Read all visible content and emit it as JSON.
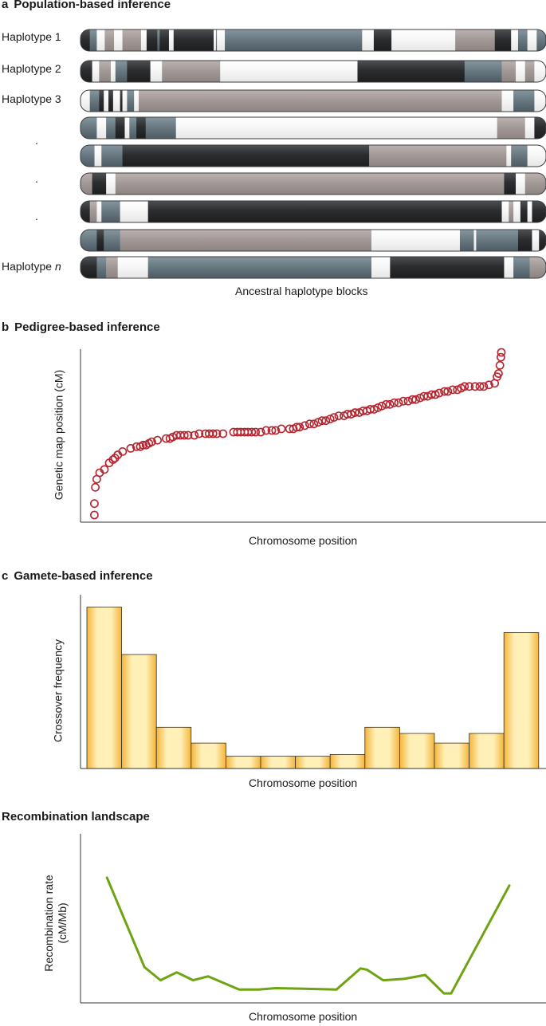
{
  "panel_a": {
    "letter": "a",
    "title": "Population-based inference",
    "row_labels": [
      "Haplotype 1",
      "Haplotype 2",
      "Haplotype 3",
      "",
      ".",
      ".",
      ".",
      "",
      "Haplotype"
    ],
    "last_label_italic": "n",
    "caption": "Ancestral haplotype blocks",
    "colors": {
      "black": "#2b2d2f",
      "grey": "#6a7a82",
      "taupe": "#a39a98",
      "white": "#f7f7f7"
    },
    "haplotypes": [
      {
        "segments": [
          [
            "black",
            0,
            0.02
          ],
          [
            "grey",
            0.02,
            0.035
          ],
          [
            "white",
            0.035,
            0.052
          ],
          [
            "taupe",
            0.052,
            0.072
          ],
          [
            "white",
            0.072,
            0.09
          ],
          [
            "taupe",
            0.09,
            0.13
          ],
          [
            "white",
            0.13,
            0.142
          ],
          [
            "black",
            0.142,
            0.165
          ],
          [
            "grey",
            0.165,
            0.17
          ],
          [
            "black",
            0.17,
            0.19
          ],
          [
            "white",
            0.19,
            0.2
          ],
          [
            "black",
            0.2,
            0.286
          ],
          [
            "white",
            0.286,
            0.291
          ],
          [
            "grey",
            0.291,
            0.293
          ],
          [
            "white",
            0.293,
            0.31
          ],
          [
            "grey",
            0.31,
            0.605
          ],
          [
            "white",
            0.605,
            0.63
          ],
          [
            "black",
            0.63,
            0.668
          ],
          [
            "white",
            0.668,
            0.805
          ],
          [
            "taupe",
            0.805,
            0.89
          ],
          [
            "black",
            0.89,
            0.925
          ],
          [
            "white",
            0.925,
            0.94
          ],
          [
            "grey",
            0.94,
            0.96
          ],
          [
            "white",
            0.96,
            0.98
          ],
          [
            "grey",
            0.98,
            1
          ]
        ]
      },
      {
        "segments": [
          [
            "black",
            0,
            0.025
          ],
          [
            "white",
            0.025,
            0.04
          ],
          [
            "taupe",
            0.04,
            0.065
          ],
          [
            "white",
            0.065,
            0.075
          ],
          [
            "grey",
            0.075,
            0.1
          ],
          [
            "black",
            0.1,
            0.15
          ],
          [
            "white",
            0.15,
            0.175
          ],
          [
            "taupe",
            0.175,
            0.3
          ],
          [
            "white",
            0.3,
            0.595
          ],
          [
            "black",
            0.595,
            0.825
          ],
          [
            "grey",
            0.825,
            0.905
          ],
          [
            "taupe",
            0.905,
            0.935
          ],
          [
            "white",
            0.935,
            0.955
          ],
          [
            "taupe",
            0.955,
            0.975
          ],
          [
            "white",
            0.975,
            1
          ]
        ]
      },
      {
        "segments": [
          [
            "white",
            0,
            0.02
          ],
          [
            "grey",
            0.02,
            0.04
          ],
          [
            "black",
            0.04,
            0.05
          ],
          [
            "white",
            0.05,
            0.06
          ],
          [
            "black",
            0.06,
            0.07
          ],
          [
            "white",
            0.07,
            0.085
          ],
          [
            "black",
            0.085,
            0.09
          ],
          [
            "white",
            0.09,
            0.1
          ],
          [
            "grey",
            0.1,
            0.115
          ],
          [
            "white",
            0.115,
            0.125
          ],
          [
            "taupe",
            0.125,
            0.905
          ],
          [
            "white",
            0.905,
            0.93
          ],
          [
            "grey",
            0.93,
            0.975
          ],
          [
            "white",
            0.975,
            1
          ]
        ]
      },
      {
        "segments": [
          [
            "grey",
            0,
            0.035
          ],
          [
            "white",
            0.035,
            0.055
          ],
          [
            "grey",
            0.055,
            0.075
          ],
          [
            "black",
            0.075,
            0.095
          ],
          [
            "white",
            0.095,
            0.105
          ],
          [
            "grey",
            0.105,
            0.12
          ],
          [
            "black",
            0.12,
            0.14
          ],
          [
            "grey",
            0.14,
            0.205
          ],
          [
            "white",
            0.205,
            0.895
          ],
          [
            "taupe",
            0.895,
            0.955
          ],
          [
            "white",
            0.955,
            0.975
          ],
          [
            "black",
            0.975,
            1
          ]
        ]
      },
      {
        "segments": [
          [
            "grey",
            0,
            0.03
          ],
          [
            "white",
            0.03,
            0.045
          ],
          [
            "grey",
            0.045,
            0.09
          ],
          [
            "black",
            0.09,
            0.62
          ],
          [
            "taupe",
            0.62,
            0.915
          ],
          [
            "white",
            0.915,
            0.925
          ],
          [
            "grey",
            0.925,
            0.96
          ],
          [
            "white",
            0.96,
            1
          ]
        ]
      },
      {
        "segments": [
          [
            "taupe",
            0,
            0.025
          ],
          [
            "black",
            0.025,
            0.055
          ],
          [
            "white",
            0.055,
            0.075
          ],
          [
            "taupe",
            0.075,
            0.91
          ],
          [
            "black",
            0.91,
            0.935
          ],
          [
            "white",
            0.935,
            0.955
          ],
          [
            "taupe",
            0.955,
            1
          ]
        ]
      },
      {
        "segments": [
          [
            "black",
            0,
            0.02
          ],
          [
            "taupe",
            0.02,
            0.035
          ],
          [
            "white",
            0.035,
            0.045
          ],
          [
            "grey",
            0.045,
            0.085
          ],
          [
            "white",
            0.085,
            0.145
          ],
          [
            "black",
            0.145,
            0.905
          ],
          [
            "white",
            0.905,
            0.92
          ],
          [
            "taupe",
            0.92,
            0.93
          ],
          [
            "white",
            0.93,
            0.945
          ],
          [
            "black",
            0.945,
            0.96
          ],
          [
            "white",
            0.96,
            0.97
          ],
          [
            "black",
            0.97,
            1
          ]
        ]
      },
      {
        "segments": [
          [
            "grey",
            0,
            0.035
          ],
          [
            "black",
            0.035,
            0.05
          ],
          [
            "grey",
            0.05,
            0.085
          ],
          [
            "taupe",
            0.085,
            0.625
          ],
          [
            "white",
            0.625,
            0.815
          ],
          [
            "grey",
            0.815,
            0.845
          ],
          [
            "white",
            0.845,
            0.85
          ],
          [
            "grey",
            0.85,
            0.94
          ],
          [
            "black",
            0.94,
            0.97
          ],
          [
            "white",
            0.97,
            0.985
          ],
          [
            "black",
            0.985,
            1
          ]
        ]
      },
      {
        "segments": [
          [
            "black",
            0,
            0.035
          ],
          [
            "grey",
            0.035,
            0.055
          ],
          [
            "taupe",
            0.055,
            0.08
          ],
          [
            "white",
            0.08,
            0.145
          ],
          [
            "grey",
            0.145,
            0.625
          ],
          [
            "white",
            0.625,
            0.665
          ],
          [
            "black",
            0.665,
            0.91
          ],
          [
            "white",
            0.91,
            0.93
          ],
          [
            "grey",
            0.93,
            0.965
          ],
          [
            "taupe",
            0.965,
            1
          ]
        ]
      }
    ]
  },
  "panel_b": {
    "letter": "b",
    "title": "Pedigree-based inference",
    "chart_data": {
      "type": "scatter",
      "xlabel": "Chromosome position",
      "ylabel": "Genetic map position (cM)",
      "marker_color": "#b5252f",
      "points": [
        [
          0.4,
          0.0
        ],
        [
          0.4,
          0.07
        ],
        [
          0.6,
          0.17
        ],
        [
          0.9,
          0.22
        ],
        [
          1.5,
          0.26
        ],
        [
          2.5,
          0.28
        ],
        [
          3.5,
          0.32
        ],
        [
          4.3,
          0.34
        ],
        [
          4.7,
          0.35
        ],
        [
          5.3,
          0.37
        ],
        [
          6.3,
          0.39
        ],
        [
          8.0,
          0.41
        ],
        [
          9.2,
          0.42
        ],
        [
          10.0,
          0.42
        ],
        [
          10.6,
          0.43
        ],
        [
          11.2,
          0.43
        ],
        [
          11.8,
          0.44
        ],
        [
          12.4,
          0.45
        ],
        [
          13.6,
          0.46
        ],
        [
          15.4,
          0.47
        ],
        [
          16.2,
          0.47
        ],
        [
          16.8,
          0.48
        ],
        [
          17.6,
          0.49
        ],
        [
          18.4,
          0.49
        ],
        [
          19.2,
          0.49
        ],
        [
          20.0,
          0.49
        ],
        [
          21.3,
          0.49
        ],
        [
          22.3,
          0.5
        ],
        [
          23.6,
          0.5
        ],
        [
          24.4,
          0.5
        ],
        [
          25.2,
          0.5
        ],
        [
          26.0,
          0.5
        ],
        [
          27.3,
          0.5
        ],
        [
          29.5,
          0.51
        ],
        [
          30.3,
          0.51
        ],
        [
          31.0,
          0.51
        ],
        [
          31.8,
          0.51
        ],
        [
          32.5,
          0.51
        ],
        [
          33.3,
          0.51
        ],
        [
          34.1,
          0.51
        ],
        [
          35.2,
          0.51
        ],
        [
          36.3,
          0.52
        ],
        [
          37.5,
          0.52
        ],
        [
          38.3,
          0.52
        ],
        [
          39.5,
          0.53
        ],
        [
          41.2,
          0.53
        ],
        [
          42.0,
          0.53
        ],
        [
          42.7,
          0.54
        ],
        [
          43.3,
          0.54
        ],
        [
          44.4,
          0.55
        ],
        [
          45.4,
          0.56
        ],
        [
          46.3,
          0.56
        ],
        [
          47.2,
          0.57
        ],
        [
          48.0,
          0.58
        ],
        [
          48.8,
          0.58
        ],
        [
          49.7,
          0.59
        ],
        [
          50.5,
          0.6
        ],
        [
          51.5,
          0.61
        ],
        [
          52.6,
          0.61
        ],
        [
          53.3,
          0.62
        ],
        [
          54.1,
          0.62
        ],
        [
          54.9,
          0.63
        ],
        [
          55.8,
          0.63
        ],
        [
          56.6,
          0.64
        ],
        [
          57.4,
          0.64
        ],
        [
          58.1,
          0.65
        ],
        [
          58.9,
          0.65
        ],
        [
          59.7,
          0.66
        ],
        [
          60.5,
          0.67
        ],
        [
          61.4,
          0.68
        ],
        [
          62.2,
          0.68
        ],
        [
          63.1,
          0.69
        ],
        [
          64.0,
          0.69
        ],
        [
          65.0,
          0.7
        ],
        [
          66.0,
          0.7
        ],
        [
          66.9,
          0.71
        ],
        [
          67.6,
          0.71
        ],
        [
          68.5,
          0.72
        ],
        [
          69.3,
          0.73
        ],
        [
          70.1,
          0.73
        ],
        [
          70.9,
          0.74
        ],
        [
          71.7,
          0.74
        ],
        [
          72.5,
          0.75
        ],
        [
          73.6,
          0.76
        ],
        [
          74.3,
          0.76
        ],
        [
          75.3,
          0.77
        ],
        [
          76.3,
          0.77
        ],
        [
          77.1,
          0.78
        ],
        [
          77.8,
          0.79
        ],
        [
          78.8,
          0.79
        ],
        [
          80.0,
          0.79
        ],
        [
          81.0,
          0.79
        ],
        [
          81.8,
          0.79
        ],
        [
          82.9,
          0.8
        ],
        [
          84.1,
          0.81
        ],
        [
          84.6,
          0.85
        ],
        [
          84.9,
          0.87
        ],
        [
          85.2,
          0.92
        ],
        [
          85.4,
          0.97
        ],
        [
          85.5,
          1.0
        ]
      ]
    }
  },
  "panel_c": {
    "letter": "c",
    "title": "Gamete-based inference",
    "chart_data": {
      "type": "bar",
      "xlabel": "Chromosome position",
      "ylabel": "Crossover frequency",
      "bar_color_light": "#fff0b8",
      "bar_color_dark": "#f3b53a",
      "values": [
        0.92,
        0.65,
        0.235,
        0.145,
        0.07,
        0.07,
        0.07,
        0.08,
        0.235,
        0.2,
        0.145,
        0.2,
        0.775
      ]
    }
  },
  "panel_d": {
    "title": "Recombination landscape",
    "chart_data": {
      "type": "line",
      "xlabel": "Chromosome position",
      "ylabel_lines": [
        "Recombination rate",
        "(cM/Mb)"
      ],
      "line_color": "#6ea314",
      "x": [
        5.3,
        14.1,
        17.9,
        21.7,
        25.6,
        29.1,
        36.4,
        41.0,
        45.0,
        59.3,
        65.0,
        66.5,
        70.3,
        75.2,
        80.2,
        84.6,
        86.3,
        100.0
      ],
      "y": [
        0.94,
        0.26,
        0.16,
        0.22,
        0.16,
        0.19,
        0.09,
        0.09,
        0.1,
        0.09,
        0.25,
        0.24,
        0.16,
        0.17,
        0.2,
        0.06,
        0.06,
        0.88
      ]
    }
  }
}
